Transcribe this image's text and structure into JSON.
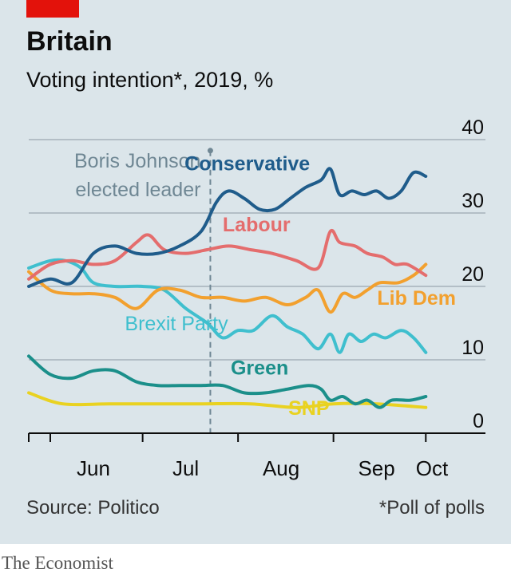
{
  "header": {
    "title": "Britain",
    "subtitle": "Voting intention*, 2019, %"
  },
  "footer": {
    "source": "Source: Politico",
    "note": "*Poll of polls",
    "brand": "The Economist"
  },
  "colors": {
    "background": "#dbe5ea",
    "accent": "#e3120b",
    "grid": "#9ba8b0",
    "axis": "#0d0d0d"
  },
  "chart_data": {
    "type": "line",
    "ylim": [
      0,
      40
    ],
    "yticks": [
      "0",
      "10",
      "20",
      "30",
      "40"
    ],
    "xlim": [
      "2019-05-25",
      "2019-10-03"
    ],
    "xticks": [
      {
        "date": "2019-05-25",
        "label": ""
      },
      {
        "date": "2019-06-01",
        "label": ""
      },
      {
        "date": "2019-06-15",
        "label": "Jun"
      },
      {
        "date": "2019-07-01",
        "label": ""
      },
      {
        "date": "2019-07-15",
        "label": "Jul"
      },
      {
        "date": "2019-08-01",
        "label": ""
      },
      {
        "date": "2019-08-15",
        "label": "Aug"
      },
      {
        "date": "2019-09-01",
        "label": ""
      },
      {
        "date": "2019-09-15",
        "label": "Sep"
      },
      {
        "date": "2019-10-01",
        "label": ""
      },
      {
        "date": "2019-10-03",
        "label": "Oct"
      }
    ],
    "grid": true,
    "annotation": {
      "date": "2019-07-23",
      "text_lines": [
        "Boris Johnson",
        "elected leader"
      ]
    },
    "series": [
      {
        "name": "Conservative",
        "color": "#1f5c8b",
        "points": [
          [
            "2019-05-25",
            20
          ],
          [
            "2019-06-01",
            21
          ],
          [
            "2019-06-08",
            20.5
          ],
          [
            "2019-06-15",
            24.5
          ],
          [
            "2019-06-22",
            25.5
          ],
          [
            "2019-06-29",
            24.5
          ],
          [
            "2019-07-06",
            24.5
          ],
          [
            "2019-07-13",
            25.5
          ],
          [
            "2019-07-20",
            27.5
          ],
          [
            "2019-07-25",
            31.5
          ],
          [
            "2019-07-29",
            33
          ],
          [
            "2019-08-03",
            32
          ],
          [
            "2019-08-08",
            30.5
          ],
          [
            "2019-08-13",
            30.5
          ],
          [
            "2019-08-18",
            32
          ],
          [
            "2019-08-23",
            33.5
          ],
          [
            "2019-08-28",
            34.5
          ],
          [
            "2019-08-31",
            36
          ],
          [
            "2019-09-03",
            32.5
          ],
          [
            "2019-09-07",
            33
          ],
          [
            "2019-09-11",
            32.5
          ],
          [
            "2019-09-15",
            33
          ],
          [
            "2019-09-19",
            32
          ],
          [
            "2019-09-23",
            33
          ],
          [
            "2019-09-27",
            35.5
          ],
          [
            "2019-10-01",
            35
          ]
        ]
      },
      {
        "name": "Labour",
        "color": "#e46d6d",
        "points": [
          [
            "2019-05-25",
            21
          ],
          [
            "2019-06-01",
            23
          ],
          [
            "2019-06-08",
            23.5
          ],
          [
            "2019-06-15",
            23
          ],
          [
            "2019-06-22",
            23.5
          ],
          [
            "2019-06-29",
            26
          ],
          [
            "2019-07-03",
            27
          ],
          [
            "2019-07-08",
            25
          ],
          [
            "2019-07-15",
            24.5
          ],
          [
            "2019-07-22",
            25
          ],
          [
            "2019-07-29",
            25.5
          ],
          [
            "2019-08-05",
            25
          ],
          [
            "2019-08-12",
            24.5
          ],
          [
            "2019-08-20",
            23.5
          ],
          [
            "2019-08-27",
            22.5
          ],
          [
            "2019-08-31",
            27.5
          ],
          [
            "2019-09-03",
            26
          ],
          [
            "2019-09-08",
            25.5
          ],
          [
            "2019-09-12",
            24.5
          ],
          [
            "2019-09-17",
            24
          ],
          [
            "2019-09-21",
            23
          ],
          [
            "2019-09-25",
            23
          ],
          [
            "2019-10-01",
            21.5
          ]
        ]
      },
      {
        "name": "Lib Dem",
        "color": "#f2a02e",
        "points": [
          [
            "2019-05-25",
            22
          ],
          [
            "2019-06-01",
            19.5
          ],
          [
            "2019-06-08",
            19
          ],
          [
            "2019-06-15",
            19
          ],
          [
            "2019-06-22",
            18.5
          ],
          [
            "2019-06-29",
            17
          ],
          [
            "2019-07-06",
            19.5
          ],
          [
            "2019-07-13",
            19.5
          ],
          [
            "2019-07-20",
            18.5
          ],
          [
            "2019-07-27",
            18.5
          ],
          [
            "2019-08-03",
            18
          ],
          [
            "2019-08-10",
            18.5
          ],
          [
            "2019-08-17",
            17.5
          ],
          [
            "2019-08-23",
            18.5
          ],
          [
            "2019-08-27",
            19.5
          ],
          [
            "2019-08-31",
            16.5
          ],
          [
            "2019-09-04",
            19
          ],
          [
            "2019-09-08",
            18.5
          ],
          [
            "2019-09-12",
            19.5
          ],
          [
            "2019-09-16",
            20.5
          ],
          [
            "2019-09-22",
            20.5
          ],
          [
            "2019-09-27",
            21.5
          ],
          [
            "2019-10-01",
            23
          ]
        ]
      },
      {
        "name": "Brexit Party",
        "color": "#3fbfce",
        "points": [
          [
            "2019-05-25",
            22.5
          ],
          [
            "2019-06-01",
            23.5
          ],
          [
            "2019-06-06",
            23.5
          ],
          [
            "2019-06-11",
            22.5
          ],
          [
            "2019-06-15",
            20.5
          ],
          [
            "2019-06-22",
            20
          ],
          [
            "2019-07-01",
            20
          ],
          [
            "2019-07-08",
            19.5
          ],
          [
            "2019-07-15",
            17
          ],
          [
            "2019-07-22",
            15
          ],
          [
            "2019-07-27",
            13
          ],
          [
            "2019-08-01",
            14
          ],
          [
            "2019-08-06",
            14
          ],
          [
            "2019-08-12",
            16
          ],
          [
            "2019-08-17",
            14.5
          ],
          [
            "2019-08-22",
            13.5
          ],
          [
            "2019-08-27",
            11.5
          ],
          [
            "2019-08-31",
            13.5
          ],
          [
            "2019-09-03",
            11
          ],
          [
            "2019-09-06",
            13.5
          ],
          [
            "2019-09-10",
            12.5
          ],
          [
            "2019-09-14",
            13.5
          ],
          [
            "2019-09-18",
            13
          ],
          [
            "2019-09-23",
            14
          ],
          [
            "2019-09-27",
            13
          ],
          [
            "2019-10-01",
            11
          ]
        ]
      },
      {
        "name": "Green",
        "color": "#1b8f8a",
        "points": [
          [
            "2019-05-25",
            10.5
          ],
          [
            "2019-06-01",
            8
          ],
          [
            "2019-06-08",
            7.5
          ],
          [
            "2019-06-15",
            8.5
          ],
          [
            "2019-06-22",
            8.5
          ],
          [
            "2019-06-29",
            7
          ],
          [
            "2019-07-06",
            6.5
          ],
          [
            "2019-07-13",
            6.5
          ],
          [
            "2019-07-20",
            6.5
          ],
          [
            "2019-07-27",
            6.5
          ],
          [
            "2019-08-03",
            5.5
          ],
          [
            "2019-08-10",
            5.5
          ],
          [
            "2019-08-17",
            6
          ],
          [
            "2019-08-24",
            6.5
          ],
          [
            "2019-08-28",
            6
          ],
          [
            "2019-08-31",
            4.5
          ],
          [
            "2019-09-04",
            5
          ],
          [
            "2019-09-08",
            4
          ],
          [
            "2019-09-12",
            4.5
          ],
          [
            "2019-09-16",
            3.5
          ],
          [
            "2019-09-20",
            4.5
          ],
          [
            "2019-09-26",
            4.5
          ],
          [
            "2019-10-01",
            5
          ]
        ]
      },
      {
        "name": "SNP",
        "color": "#e9d221",
        "points": [
          [
            "2019-05-25",
            5.5
          ],
          [
            "2019-06-05",
            4
          ],
          [
            "2019-06-20",
            4
          ],
          [
            "2019-07-05",
            4
          ],
          [
            "2019-07-20",
            4
          ],
          [
            "2019-08-05",
            4
          ],
          [
            "2019-08-20",
            3.5
          ],
          [
            "2019-09-01",
            4
          ],
          [
            "2019-09-15",
            4
          ],
          [
            "2019-10-01",
            3.5
          ]
        ]
      }
    ],
    "series_labels": [
      {
        "text": "Conservative",
        "anchor_date": "2019-08-04",
        "y": 35.8,
        "color": "#1f5c8b",
        "bold": true
      },
      {
        "text": "Labour",
        "anchor_date": "2019-08-07",
        "y": 27.5,
        "color": "#e46d6d",
        "bold": true
      },
      {
        "text": "Lib Dem",
        "anchor_date": "2019-09-28",
        "y": 17.5,
        "color": "#f2a02e",
        "bold": true
      },
      {
        "text": "Brexit Party",
        "anchor_date": "2019-07-12",
        "y": 14,
        "color": "#3fbfce",
        "bold": false
      },
      {
        "text": "Green",
        "anchor_date": "2019-08-08",
        "y": 8,
        "color": "#1b8f8a",
        "bold": true
      },
      {
        "text": "SNP",
        "anchor_date": "2019-08-24",
        "y": 2.5,
        "color": "#e9d221",
        "bold": true
      }
    ]
  }
}
